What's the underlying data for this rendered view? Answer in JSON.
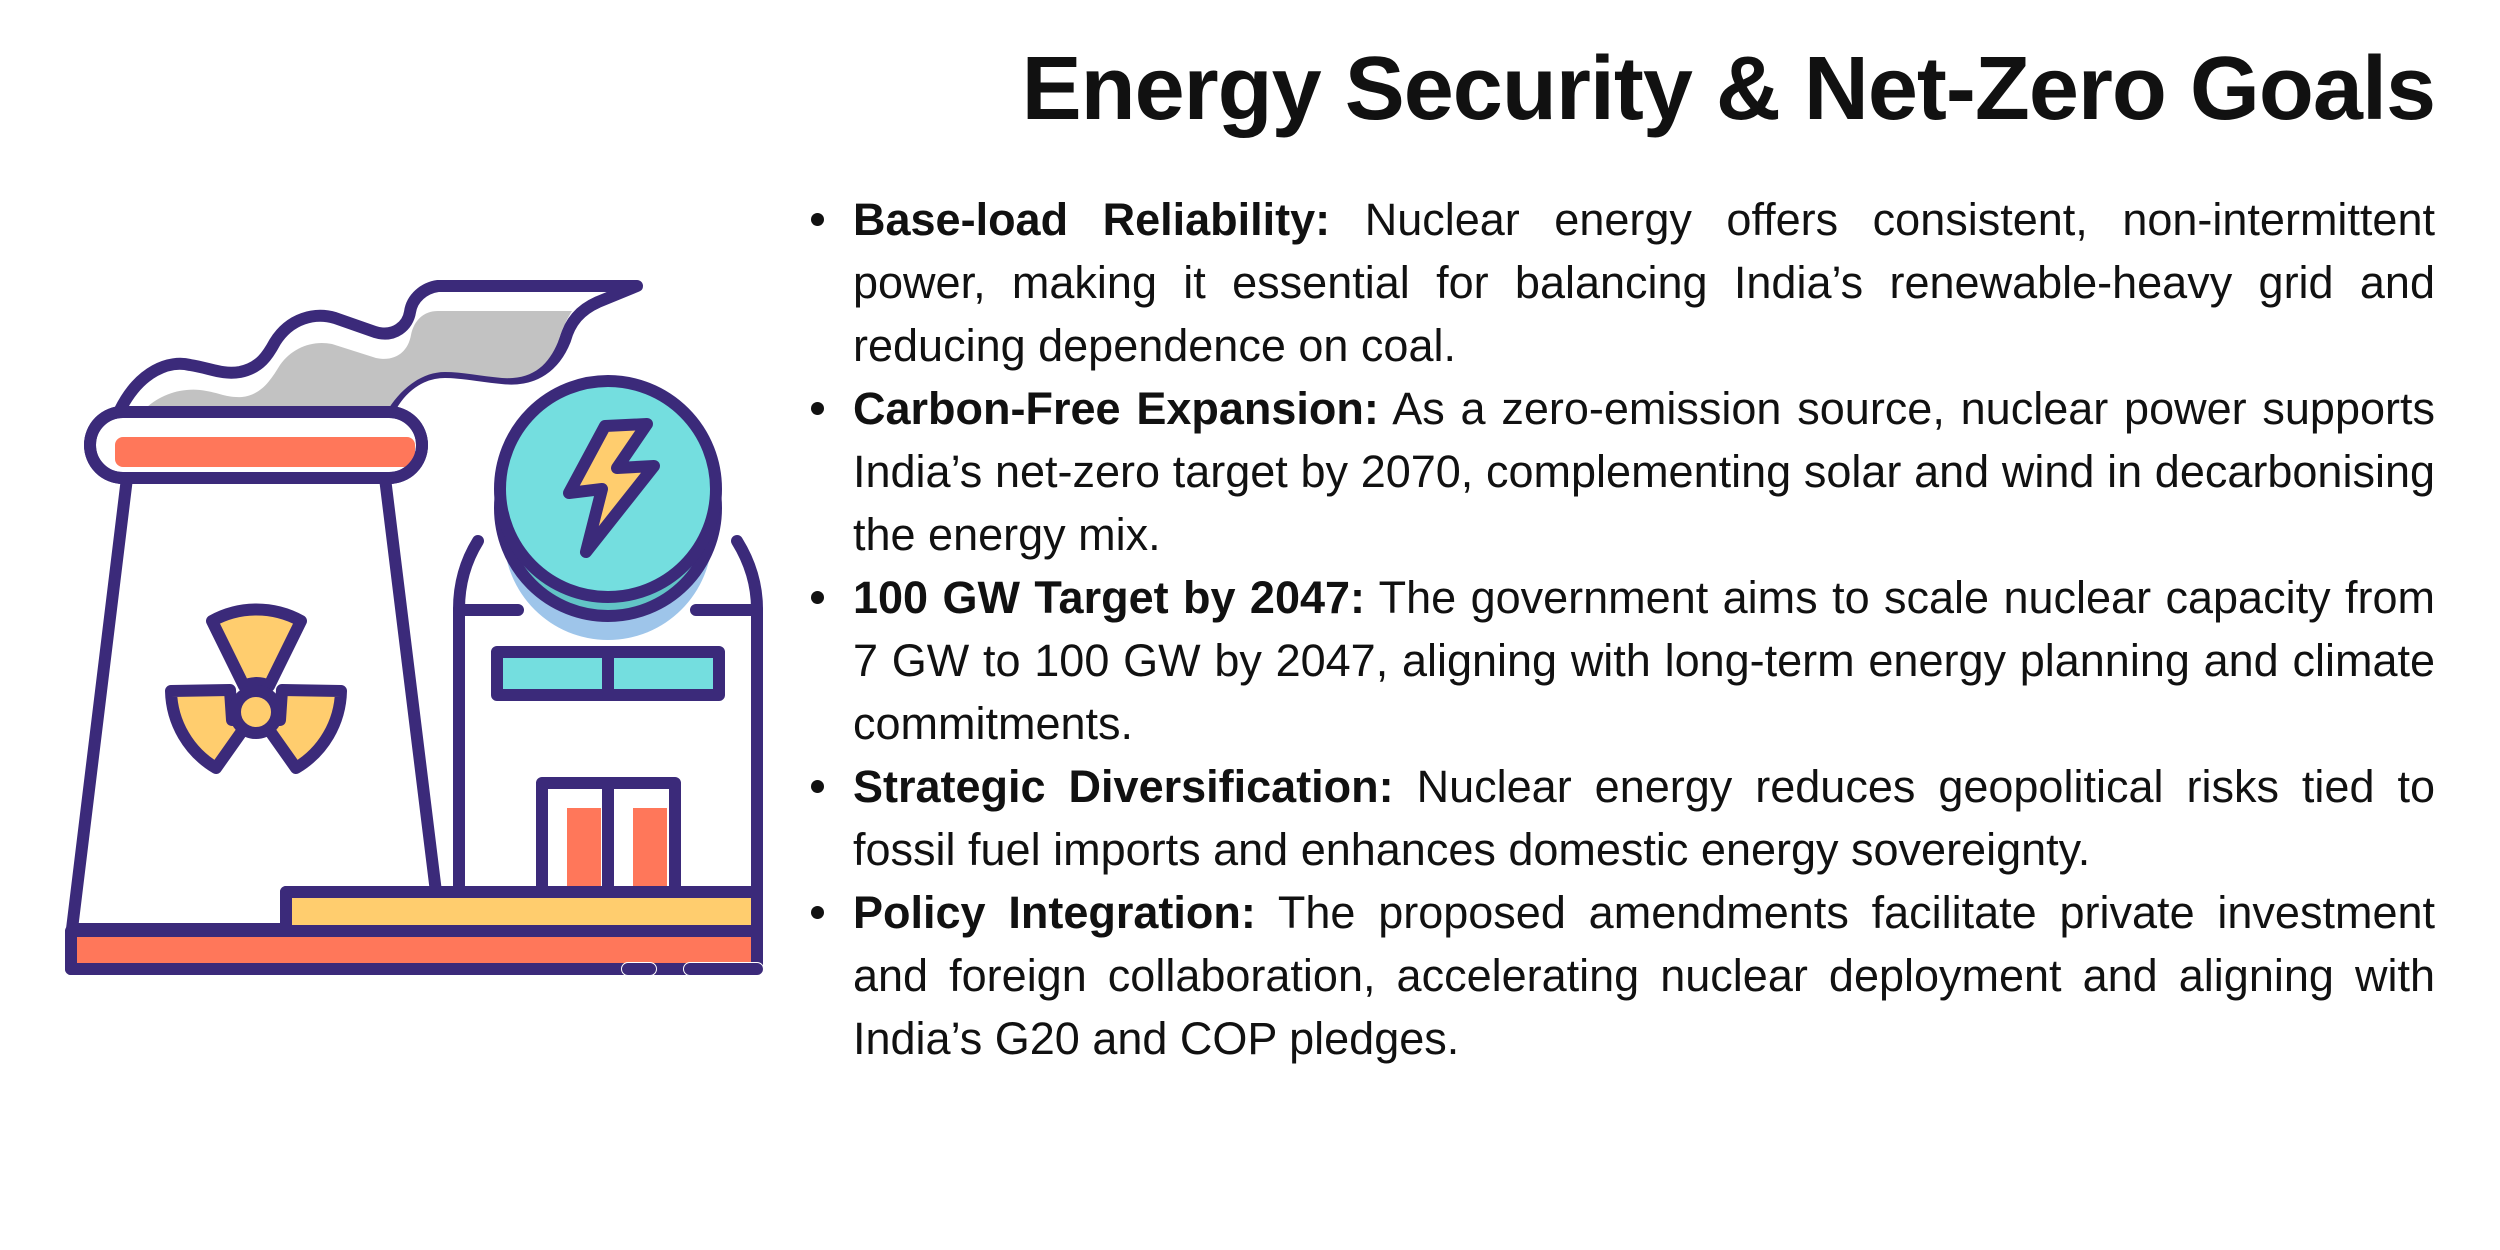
{
  "title": "Energy Security & Net-Zero Goals",
  "illustration": {
    "icon": "nuclear-power-plant-icon",
    "colors": {
      "outline": "#3B2A7A",
      "orange": "#FF775A",
      "yellow": "#FFCD6E",
      "cyan": "#74DEDF",
      "teal": "#62C4C6",
      "light_blue": "#9EC5EA",
      "smoke": "#C2C2C2"
    }
  },
  "points": [
    {
      "heading": "Base-load Reliability:",
      "text": " Nuclear energy offers consistent, non-intermittent power, making it essential for balancing India’s renewable-heavy grid and reducing dependence on coal."
    },
    {
      "heading": "Carbon-Free Expansion:",
      "text": " As a zero-emission source, nuclear power supports India’s net-zero target by 2070, complementing solar and wind in decarbonising the energy mix."
    },
    {
      "heading": "100 GW Target by 2047:",
      "text": " The government aims to scale nuclear capacity from 7 GW to 100 GW by 2047, aligning with long-term energy planning and climate commitments."
    },
    {
      "heading": "Strategic Diversification:",
      "text": " Nuclear energy reduces geopolitical risks tied to fossil fuel imports and enhances domestic energy sovereignty."
    },
    {
      "heading": "Policy Integration:",
      "text": " The proposed amendments facilitate private investment and foreign collaboration, accelerating nuclear deployment and aligning with India’s G20 and COP pledges."
    }
  ]
}
